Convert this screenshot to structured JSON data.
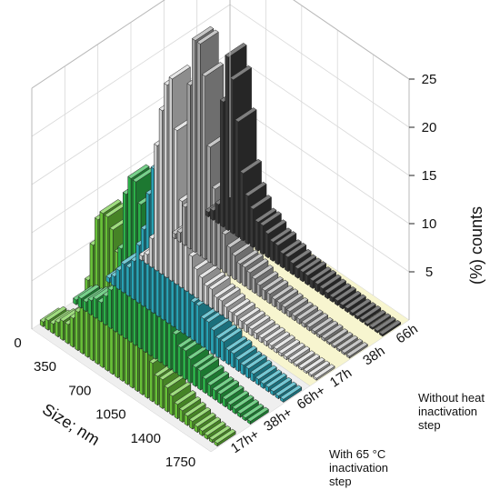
{
  "chart_data": {
    "type": "bar",
    "chart_kind": "3d-bar",
    "zlabel": "(%) counts",
    "xlabel": "Size; nm",
    "z_ticks": [
      "5",
      "10",
      "15",
      "20",
      "25"
    ],
    "zlim": [
      0,
      25
    ],
    "size_ticks": [
      "0",
      "350",
      "700",
      "1050",
      "1400",
      "1750"
    ],
    "sizes": [
      0,
      50,
      100,
      150,
      200,
      250,
      300,
      350,
      400,
      450,
      500,
      550,
      600,
      650,
      700,
      750,
      800,
      850,
      900,
      950,
      1000,
      1050,
      1100,
      1150,
      1200,
      1250,
      1300,
      1350,
      1400,
      1450,
      1500,
      1550,
      1600,
      1650,
      1700,
      1750
    ],
    "sample_ticks": [
      "17h+",
      "38h+",
      "66h+",
      "17h",
      "38h",
      "66h"
    ],
    "group_labels": {
      "with": "With 65 °C inactivation step",
      "without": "Without heat inactivation step"
    },
    "series": [
      {
        "name": "17h+",
        "color": "#3a3a3a",
        "values": [
          0.5,
          1,
          2,
          13,
          18,
          16,
          12,
          7,
          5,
          4,
          3,
          3,
          2.5,
          2,
          2,
          1.5,
          1.5,
          1.2,
          1,
          1,
          1,
          0.8,
          0.8,
          0.7,
          0.6,
          0.5,
          0.5,
          0.4,
          0.4,
          0.3,
          0.3,
          0.3,
          0.2,
          0.2,
          0.2,
          0.2
        ]
      },
      {
        "name": "38h+",
        "color": "#a9a9a9",
        "values": [
          0.5,
          1,
          4,
          17,
          22,
          22,
          19,
          12,
          8,
          5,
          4,
          3,
          2.5,
          2,
          2,
          1.8,
          1.5,
          1.2,
          1,
          1,
          0.8,
          0.8,
          0.7,
          0.6,
          0.5,
          0.5,
          0.4,
          0.4,
          0.3,
          0.3,
          0.3,
          0.2,
          0.2,
          0.2,
          0.2,
          0.2
        ]
      },
      {
        "name": "66h+",
        "color": "#d9d9d9",
        "values": [
          0.5,
          1,
          3,
          13,
          17,
          20,
          21,
          16,
          9,
          5,
          4,
          3,
          2.5,
          2,
          2,
          1.5,
          1.5,
          1.2,
          1,
          1,
          0.8,
          0.8,
          0.7,
          0.6,
          0.5,
          0.5,
          0.4,
          0.4,
          0.3,
          0.3,
          0.3,
          0.2,
          0.2,
          0.2,
          0.2,
          0.2
        ]
      },
      {
        "name": "17h",
        "color": "#2aaabd",
        "values": [
          0.5,
          1,
          2,
          3,
          3,
          4,
          6,
          8,
          12,
          15,
          16,
          17,
          12,
          8,
          7,
          6,
          5,
          4,
          4,
          3,
          3,
          2.5,
          2,
          2,
          1.5,
          1.5,
          1.2,
          1,
          1,
          0.8,
          0.6,
          0.5,
          0.5,
          0.4,
          0.3,
          0.3
        ]
      },
      {
        "name": "38h",
        "color": "#2db84c",
        "values": [
          0.5,
          1,
          1,
          1.5,
          2,
          2,
          3,
          4,
          6,
          9,
          15,
          17,
          17,
          15,
          12,
          10,
          9,
          7,
          6,
          5,
          4,
          3,
          3,
          2.5,
          2,
          2,
          1.5,
          1.2,
          1,
          1,
          0.8,
          0.6,
          0.5,
          0.4,
          0.3,
          0.3
        ]
      },
      {
        "name": "66h",
        "color": "#6cc93a",
        "values": [
          0.5,
          1,
          1,
          1.5,
          2,
          2,
          3,
          4,
          5,
          8,
          12,
          15,
          16,
          16,
          15,
          13,
          11,
          9,
          8,
          7,
          6,
          5,
          4,
          3,
          3,
          2.5,
          2,
          1.5,
          1.2,
          1,
          0.8,
          0.6,
          0.5,
          0.4,
          0.3,
          0.3
        ]
      }
    ]
  }
}
